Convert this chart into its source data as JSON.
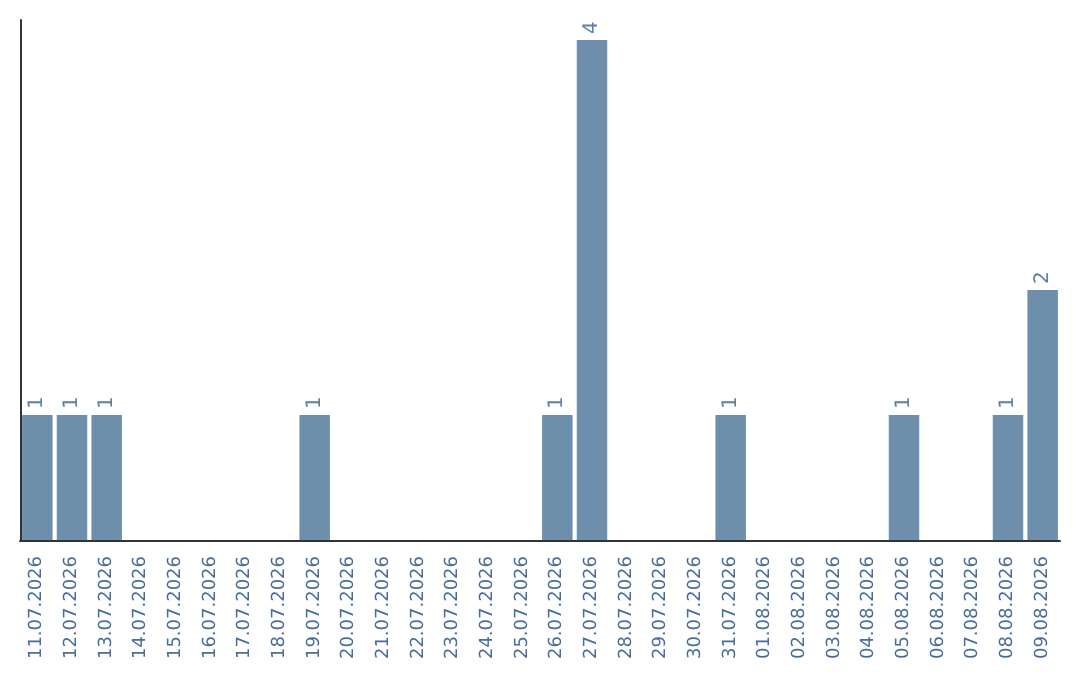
{
  "chart_data": {
    "type": "bar",
    "categories": [
      "11.07.2026",
      "12.07.2026",
      "13.07.2026",
      "14.07.2026",
      "15.07.2026",
      "16.07.2026",
      "17.07.2026",
      "18.07.2026",
      "19.07.2026",
      "20.07.2026",
      "21.07.2026",
      "22.07.2026",
      "23.07.2026",
      "24.07.2026",
      "25.07.2026",
      "26.07.2026",
      "27.07.2026",
      "28.07.2026",
      "29.07.2026",
      "30.07.2026",
      "31.07.2026",
      "01.08.2026",
      "02.08.2026",
      "03.08.2026",
      "04.08.2026",
      "05.08.2026",
      "06.08.2026",
      "07.08.2026",
      "08.08.2026",
      "09.08.2026"
    ],
    "values": [
      1,
      1,
      1,
      0,
      0,
      0,
      0,
      0,
      1,
      0,
      0,
      0,
      0,
      0,
      0,
      1,
      4,
      0,
      0,
      0,
      1,
      0,
      0,
      0,
      0,
      1,
      0,
      0,
      1,
      2
    ],
    "value_labels": [
      "1",
      "1",
      "1",
      null,
      null,
      null,
      null,
      null,
      "1",
      null,
      null,
      null,
      null,
      null,
      null,
      "1",
      "4",
      null,
      null,
      null,
      "1",
      null,
      null,
      null,
      null,
      "1",
      null,
      null,
      "1",
      "2"
    ],
    "color": "#6d8fac"
  }
}
